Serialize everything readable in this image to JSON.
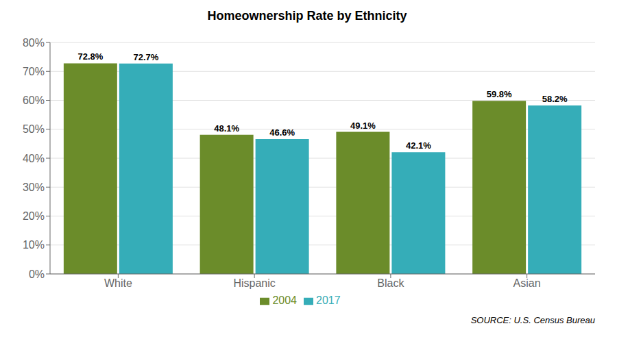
{
  "chart_data": {
    "type": "bar",
    "title": "Homeownership Rate by Ethnicity",
    "categories": [
      "White",
      "Hispanic",
      "Black",
      "Asian"
    ],
    "series": [
      {
        "name": "2004",
        "color": "#6b8c2a",
        "values": [
          72.8,
          48.1,
          49.1,
          59.8
        ],
        "value_labels": [
          "72.8%",
          "48.1%",
          "49.1%",
          "59.8%"
        ]
      },
      {
        "name": "2017",
        "color": "#35adb8",
        "values": [
          72.7,
          46.6,
          42.1,
          58.2
        ],
        "value_labels": [
          "72.7%",
          "46.6%",
          "42.1%",
          "58.2%"
        ]
      }
    ],
    "ylim": [
      0,
      80
    ],
    "yticks": [
      {
        "value": 0,
        "label": "0%"
      },
      {
        "value": 10,
        "label": "10%"
      },
      {
        "value": 20,
        "label": "20%"
      },
      {
        "value": 30,
        "label": "30%"
      },
      {
        "value": 40,
        "label": "40%"
      },
      {
        "value": 50,
        "label": "50%"
      },
      {
        "value": 60,
        "label": "60%"
      },
      {
        "value": 70,
        "label": "70%"
      },
      {
        "value": 80,
        "label": "80%"
      }
    ],
    "grid": true,
    "legend": "bottom",
    "data_labels": true,
    "annotations": [
      "SOURCE: U.S. Census Bureau"
    ]
  }
}
